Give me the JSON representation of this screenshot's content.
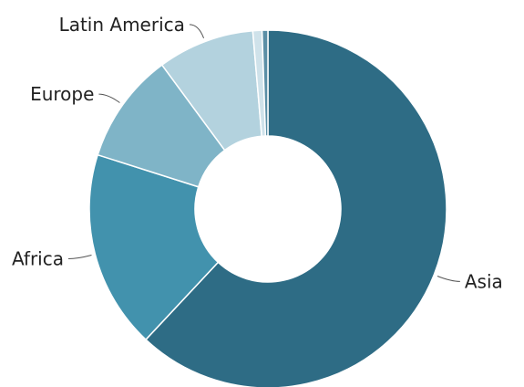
{
  "chart_data": {
    "type": "pie",
    "donut": true,
    "title": "",
    "legend": "none",
    "grid": false,
    "slices": [
      {
        "label": "Asia",
        "value": 59.5,
        "color": "#2e6c85",
        "show_label": true
      },
      {
        "label": "Africa",
        "value": 17.2,
        "color": "#4292ad",
        "show_label": true
      },
      {
        "label": "Europe",
        "value": 9.6,
        "color": "#7fb4c7",
        "show_label": true
      },
      {
        "label": "Latin America",
        "value": 8.4,
        "color": "#b3d2de",
        "show_label": true
      },
      {
        "label": "",
        "value": 0.8,
        "color": "#cfe2ea",
        "show_label": false
      },
      {
        "label": "",
        "value": 0.5,
        "color": "#5b8fa6",
        "show_label": false
      }
    ]
  }
}
